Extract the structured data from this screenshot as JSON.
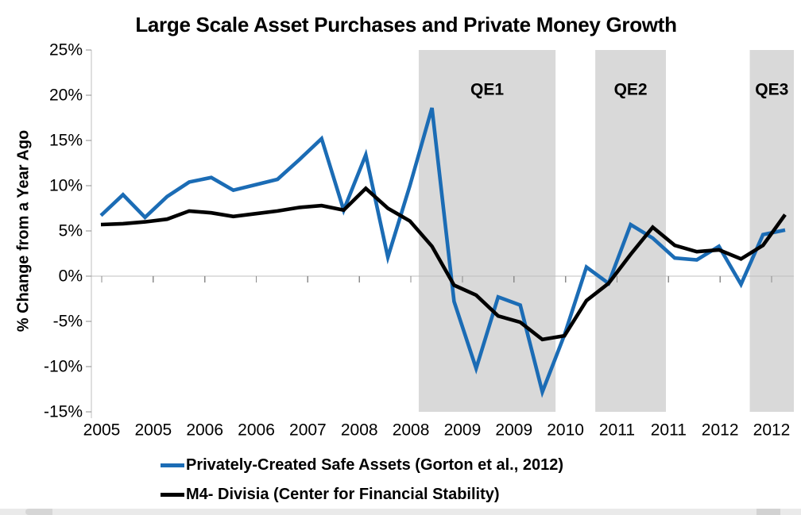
{
  "chart_data": {
    "type": "line",
    "title": "Large Scale Asset Purchases and Private Money Growth",
    "ylabel": "% Change from a Year Ago",
    "ylim": [
      -15,
      25
    ],
    "ytick_step": 5,
    "ytick_labels": [
      "25%",
      "20%",
      "15%",
      "10%",
      "5%",
      "0%",
      "-5%",
      "-10%",
      "-15%"
    ],
    "xtick_labels": [
      "2005",
      "2005",
      "2006",
      "2006",
      "2007",
      "2008",
      "2008",
      "2009",
      "2009",
      "2010",
      "2011",
      "2011",
      "2012",
      "2012"
    ],
    "x_frequency": "quarterly",
    "grid": "zero-line-only",
    "legend_position": "bottom-left",
    "axis_color": "#bfbfbf",
    "tick_color": "#8c8c8c",
    "band_fill": "#d9d9d9",
    "series": [
      {
        "name": "Privately-Created Safe Assets (Gorton et al., 2012)",
        "color": "#1b6cb5",
        "values": [
          6.7,
          9.0,
          6.5,
          8.8,
          10.4,
          10.9,
          9.5,
          10.1,
          10.7,
          12.9,
          15.2,
          7.3,
          13.4,
          2.1,
          10.0,
          18.6,
          -2.8,
          -10.2,
          -2.3,
          -3.2,
          -12.8,
          -6.5,
          1.0,
          -0.8,
          5.7,
          4.2,
          2.0,
          1.8,
          3.3,
          -0.9,
          4.6,
          5.1
        ]
      },
      {
        "name": "M4- Divisia (Center for Financial Stability)",
        "color": "#000000",
        "values": [
          5.7,
          5.8,
          6.0,
          6.3,
          7.2,
          7.0,
          6.6,
          6.9,
          7.2,
          7.6,
          7.8,
          7.3,
          9.7,
          7.5,
          6.1,
          3.3,
          -1.0,
          -2.1,
          -4.4,
          -5.1,
          -7.0,
          -6.6,
          -2.7,
          -0.8,
          2.4,
          5.4,
          3.4,
          2.7,
          2.9,
          1.9,
          3.4,
          6.8
        ]
      }
    ],
    "annotations": [
      {
        "label": "QE1",
        "start_index": 14.4,
        "end_index": 20.6
      },
      {
        "label": "QE2",
        "start_index": 22.4,
        "end_index": 25.6
      },
      {
        "label": "QE3",
        "start_index": 29.4,
        "end_index": 31.8
      }
    ]
  }
}
